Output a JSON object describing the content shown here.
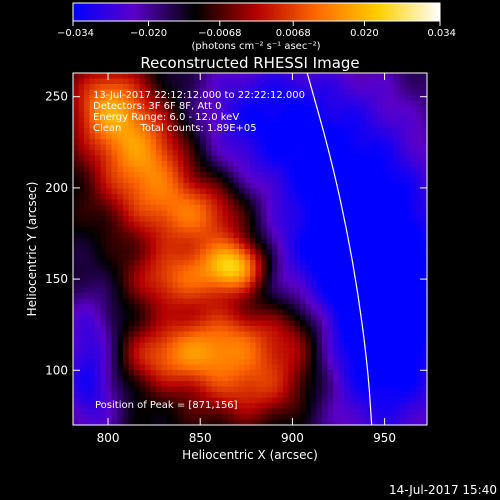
{
  "chart_data": {
    "type": "heatmap",
    "title": "Reconstructed RHESSI Image",
    "xlabel": "Heliocentric X (arcsec)",
    "ylabel": "Heliocentric Y (arcsec)",
    "xlim": [
      781,
      973
    ],
    "ylim": [
      70,
      263
    ],
    "x_ticks": [
      800,
      850,
      900,
      950
    ],
    "y_ticks": [
      100,
      150,
      200,
      250
    ],
    "x_tick_labels": [
      "800",
      "850",
      "900",
      "950"
    ],
    "y_tick_labels": [
      "100",
      "150",
      "200",
      "250"
    ],
    "colorbar": {
      "range": [
        -0.034,
        0.034
      ],
      "ticks": [
        -0.034,
        -0.02,
        -0.0068,
        0.0068,
        0.02,
        0.034
      ],
      "tick_labels": [
        "−0.034",
        "−0.020",
        "−0.0068",
        "0.0068",
        "0.020",
        "0.034"
      ],
      "unit_label": "(photons cm⁻² s⁻¹ asec⁻²)",
      "colors": [
        "#0000ff",
        "#5a00c8",
        "#000000",
        "#b40000",
        "#ff6a00",
        "#ffd000",
        "#ffffff"
      ]
    },
    "annotations": [
      "13-Jul-2017 22:12:12.000 to 22:22:12.000",
      "Detectors: 3F 6F 8F, Att 0",
      "Energy Range: 6.0 - 12.0 keV",
      "Clean      Total counts: 1.89E+05",
      "Position of Peak = [871,156]"
    ],
    "peak": {
      "x": 871,
      "y": 156
    },
    "limb_curve": [
      [
        908,
        263
      ],
      [
        920,
        220
      ],
      [
        929,
        180
      ],
      [
        936,
        140
      ],
      [
        941,
        100
      ],
      [
        943,
        70
      ]
    ],
    "emission_sources": [
      {
        "x": 869,
        "y": 157,
        "sx": 12,
        "sy": 10,
        "amp": 0.034
      },
      {
        "x": 820,
        "y": 215,
        "sx": 18,
        "sy": 22,
        "amp": 0.027
      },
      {
        "x": 800,
        "y": 245,
        "sx": 14,
        "sy": 16,
        "amp": 0.024
      },
      {
        "x": 850,
        "y": 185,
        "sx": 20,
        "sy": 14,
        "amp": 0.022
      },
      {
        "x": 838,
        "y": 150,
        "sx": 18,
        "sy": 12,
        "amp": 0.02
      },
      {
        "x": 870,
        "y": 118,
        "sx": 22,
        "sy": 14,
        "amp": 0.02
      },
      {
        "x": 835,
        "y": 108,
        "sx": 22,
        "sy": 12,
        "amp": 0.019
      },
      {
        "x": 880,
        "y": 90,
        "sx": 24,
        "sy": 14,
        "amp": 0.018
      },
      {
        "x": 905,
        "y": 120,
        "sx": 14,
        "sy": 18,
        "amp": 0.014
      }
    ],
    "dark_sources": [
      {
        "x": 930,
        "y": 175,
        "sx": 35,
        "sy": 60,
        "amp": -0.025
      },
      {
        "x": 955,
        "y": 120,
        "sx": 25,
        "sy": 50,
        "amp": -0.018
      },
      {
        "x": 880,
        "y": 240,
        "sx": 30,
        "sy": 25,
        "amp": -0.016
      },
      {
        "x": 790,
        "y": 100,
        "sx": 12,
        "sy": 30,
        "amp": -0.02
      }
    ]
  },
  "footer": {
    "timestamp": "14-Jul-2017 15:40"
  }
}
